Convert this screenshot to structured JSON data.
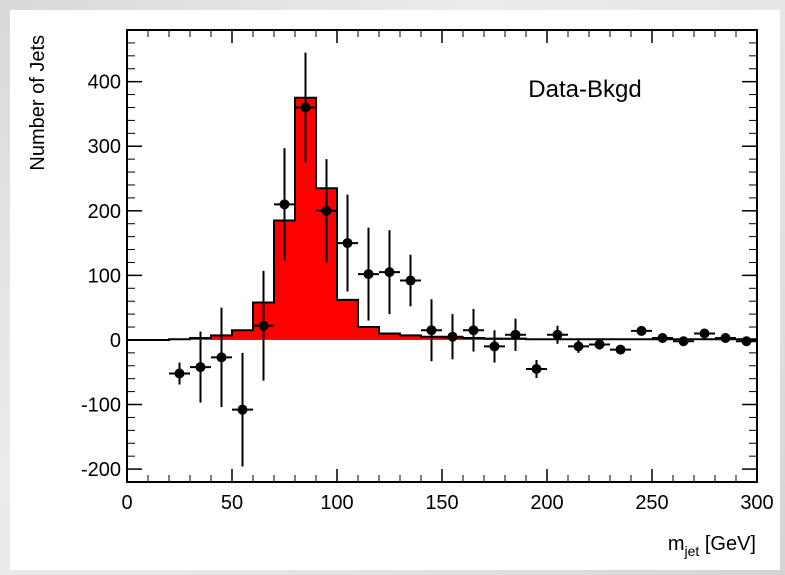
{
  "chart_data": {
    "type": "bar",
    "xlabel": "m",
    "xlabel_sub": "jet",
    "xlabel_unit": " [GeV]",
    "ylabel": "Number of Jets",
    "annotation": "Data-Bkgd",
    "xlim": [
      0,
      300
    ],
    "ylim": [
      -220,
      480
    ],
    "x_ticks": [
      0,
      50,
      100,
      150,
      200,
      250,
      300
    ],
    "y_ticks": [
      -200,
      -100,
      0,
      100,
      200,
      300,
      400
    ],
    "bin_width": 10,
    "histogram": {
      "fill_color": "#ff0000",
      "bins": [
        {
          "lo": 0,
          "hi": 10,
          "value": 0
        },
        {
          "lo": 10,
          "hi": 20,
          "value": 0
        },
        {
          "lo": 20,
          "hi": 30,
          "value": 1
        },
        {
          "lo": 30,
          "hi": 40,
          "value": 3
        },
        {
          "lo": 40,
          "hi": 50,
          "value": 7
        },
        {
          "lo": 50,
          "hi": 60,
          "value": 15
        },
        {
          "lo": 60,
          "hi": 70,
          "value": 58
        },
        {
          "lo": 70,
          "hi": 80,
          "value": 185
        },
        {
          "lo": 80,
          "hi": 90,
          "value": 375
        },
        {
          "lo": 90,
          "hi": 100,
          "value": 235
        },
        {
          "lo": 100,
          "hi": 110,
          "value": 62
        },
        {
          "lo": 110,
          "hi": 120,
          "value": 20
        },
        {
          "lo": 120,
          "hi": 130,
          "value": 10
        },
        {
          "lo": 130,
          "hi": 140,
          "value": 7
        },
        {
          "lo": 140,
          "hi": 150,
          "value": 5
        },
        {
          "lo": 150,
          "hi": 160,
          "value": 4
        },
        {
          "lo": 160,
          "hi": 170,
          "value": 3
        },
        {
          "lo": 170,
          "hi": 180,
          "value": 2
        },
        {
          "lo": 180,
          "hi": 190,
          "value": 2
        },
        {
          "lo": 190,
          "hi": 200,
          "value": 1
        },
        {
          "lo": 200,
          "hi": 210,
          "value": 1
        },
        {
          "lo": 210,
          "hi": 220,
          "value": 1
        },
        {
          "lo": 220,
          "hi": 230,
          "value": 1
        },
        {
          "lo": 230,
          "hi": 240,
          "value": 1
        },
        {
          "lo": 240,
          "hi": 250,
          "value": 1
        },
        {
          "lo": 250,
          "hi": 260,
          "value": 1
        },
        {
          "lo": 260,
          "hi": 270,
          "value": 1
        },
        {
          "lo": 270,
          "hi": 280,
          "value": 1
        },
        {
          "lo": 280,
          "hi": 290,
          "value": 1
        },
        {
          "lo": 290,
          "hi": 300,
          "value": 1
        }
      ]
    },
    "points": [
      {
        "x": 25,
        "y": -52,
        "err": 17
      },
      {
        "x": 35,
        "y": -42,
        "err": 55
      },
      {
        "x": 45,
        "y": -27,
        "err": 77
      },
      {
        "x": 55,
        "y": -108,
        "err": 88
      },
      {
        "x": 65,
        "y": 22,
        "err": 85
      },
      {
        "x": 75,
        "y": 210,
        "err": 87
      },
      {
        "x": 85,
        "y": 360,
        "err": 85
      },
      {
        "x": 95,
        "y": 200,
        "err": 80
      },
      {
        "x": 105,
        "y": 150,
        "err": 75
      },
      {
        "x": 115,
        "y": 102,
        "err": 72
      },
      {
        "x": 125,
        "y": 105,
        "err": 65
      },
      {
        "x": 135,
        "y": 92,
        "err": 40
      },
      {
        "x": 145,
        "y": 15,
        "err": 48
      },
      {
        "x": 155,
        "y": 5,
        "err": 35
      },
      {
        "x": 165,
        "y": 15,
        "err": 33
      },
      {
        "x": 175,
        "y": -10,
        "err": 25
      },
      {
        "x": 185,
        "y": 8,
        "err": 25
      },
      {
        "x": 195,
        "y": -45,
        "err": 14
      },
      {
        "x": 205,
        "y": 8,
        "err": 14
      },
      {
        "x": 215,
        "y": -10,
        "err": 10
      },
      {
        "x": 225,
        "y": -7,
        "err": 8
      },
      {
        "x": 235,
        "y": -15,
        "err": 7
      },
      {
        "x": 245,
        "y": 14,
        "err": 6
      },
      {
        "x": 255,
        "y": 3,
        "err": 5
      },
      {
        "x": 265,
        "y": -2,
        "err": 5
      },
      {
        "x": 275,
        "y": 10,
        "err": 5
      },
      {
        "x": 285,
        "y": 3,
        "err": 4
      },
      {
        "x": 295,
        "y": -2,
        "err": 4
      }
    ],
    "grid": false,
    "legend": "none"
  }
}
